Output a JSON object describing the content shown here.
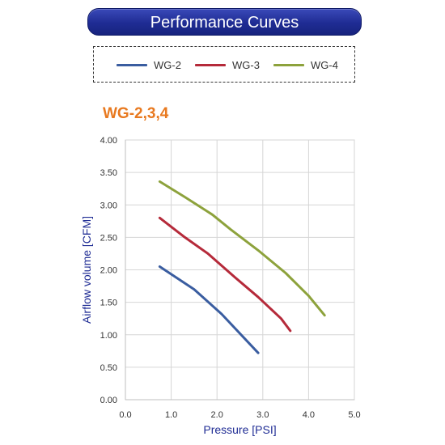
{
  "header": {
    "title": "Performance Curves"
  },
  "legend": {
    "items": [
      {
        "label": "WG-2",
        "color": "#3a5da0"
      },
      {
        "label": "WG-3",
        "color": "#b52a3a"
      },
      {
        "label": "WG-4",
        "color": "#8da23c"
      }
    ]
  },
  "chart_data": {
    "type": "line",
    "title": "WG-2,3,4",
    "xlabel": "Pressure [PSI]",
    "ylabel": "Airflow volume  [CFM]",
    "xlim": [
      0,
      5
    ],
    "ylim": [
      0,
      4
    ],
    "x_ticks": [
      "0.0",
      "1.0",
      "2.0",
      "3.0",
      "4.0",
      "5.0"
    ],
    "y_ticks": [
      "0.00",
      "0.50",
      "1.00",
      "1.50",
      "2.00",
      "2.50",
      "3.00",
      "3.50",
      "4.00"
    ],
    "grid": true,
    "series": [
      {
        "name": "WG-2",
        "color": "#3a5da0",
        "points": [
          [
            0.75,
            2.05
          ],
          [
            1.5,
            1.7
          ],
          [
            2.1,
            1.32
          ],
          [
            2.9,
            0.72
          ]
        ]
      },
      {
        "name": "WG-3",
        "color": "#b52a3a",
        "points": [
          [
            0.75,
            2.8
          ],
          [
            1.3,
            2.5
          ],
          [
            1.8,
            2.25
          ],
          [
            2.4,
            1.88
          ],
          [
            2.9,
            1.58
          ],
          [
            3.4,
            1.25
          ],
          [
            3.6,
            1.06
          ]
        ]
      },
      {
        "name": "WG-4",
        "color": "#8da23c",
        "points": [
          [
            0.75,
            3.36
          ],
          [
            1.3,
            3.12
          ],
          [
            1.9,
            2.85
          ],
          [
            2.3,
            2.62
          ],
          [
            2.9,
            2.3
          ],
          [
            3.5,
            1.95
          ],
          [
            4.0,
            1.6
          ],
          [
            4.35,
            1.3
          ]
        ]
      }
    ]
  }
}
